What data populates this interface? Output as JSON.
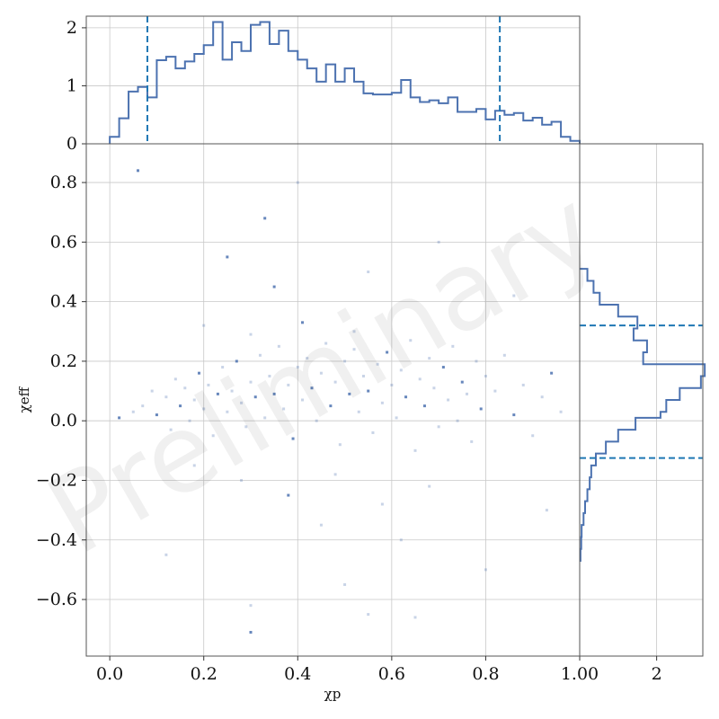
{
  "watermark": "Preliminary",
  "chart_data": [
    {
      "panel": "main",
      "type": "scatter",
      "xlabel": "χp",
      "ylabel": "χeff",
      "xlim": [
        -0.05,
        1.0
      ],
      "ylim": [
        -0.79,
        0.93
      ],
      "xticks": [
        0.0,
        0.2,
        0.4,
        0.6,
        0.8,
        1.0
      ],
      "xtick_labels": [
        "0.0",
        "0.2",
        "0.4",
        "0.6",
        "0.8",
        "1.00"
      ],
      "yticks": [
        -0.6,
        -0.4,
        -0.2,
        0.0,
        0.2,
        0.4,
        0.6,
        0.8
      ],
      "ytick_labels": [
        "−0.6",
        "−0.4",
        "−0.2",
        "0.0",
        "0.2",
        "0.4",
        "0.6",
        "0.8"
      ],
      "grid": true,
      "color": "#4c72b0",
      "points": [
        [
          0.02,
          0.01
        ],
        [
          0.05,
          0.03
        ],
        [
          0.07,
          0.05
        ],
        [
          0.09,
          0.1
        ],
        [
          0.1,
          0.02
        ],
        [
          0.12,
          0.08
        ],
        [
          0.13,
          -0.03
        ],
        [
          0.14,
          0.14
        ],
        [
          0.15,
          0.05
        ],
        [
          0.16,
          0.11
        ],
        [
          0.17,
          0.0
        ],
        [
          0.18,
          0.07
        ],
        [
          0.19,
          0.16
        ],
        [
          0.2,
          0.04
        ],
        [
          0.21,
          0.12
        ],
        [
          0.22,
          -0.05
        ],
        [
          0.23,
          0.09
        ],
        [
          0.24,
          0.18
        ],
        [
          0.25,
          0.03
        ],
        [
          0.26,
          0.1
        ],
        [
          0.27,
          0.2
        ],
        [
          0.28,
          0.06
        ],
        [
          0.29,
          -0.02
        ],
        [
          0.3,
          0.13
        ],
        [
          0.31,
          0.08
        ],
        [
          0.32,
          0.22
        ],
        [
          0.33,
          0.01
        ],
        [
          0.34,
          0.15
        ],
        [
          0.35,
          0.09
        ],
        [
          0.36,
          0.25
        ],
        [
          0.37,
          0.04
        ],
        [
          0.38,
          0.12
        ],
        [
          0.39,
          -0.06
        ],
        [
          0.4,
          0.18
        ],
        [
          0.41,
          0.07
        ],
        [
          0.42,
          0.21
        ],
        [
          0.43,
          0.11
        ],
        [
          0.44,
          0.0
        ],
        [
          0.45,
          0.16
        ],
        [
          0.46,
          0.26
        ],
        [
          0.47,
          0.05
        ],
        [
          0.48,
          0.13
        ],
        [
          0.49,
          -0.08
        ],
        [
          0.5,
          0.2
        ],
        [
          0.51,
          0.09
        ],
        [
          0.52,
          0.24
        ],
        [
          0.53,
          0.03
        ],
        [
          0.54,
          0.15
        ],
        [
          0.55,
          0.1
        ],
        [
          0.56,
          -0.04
        ],
        [
          0.57,
          0.19
        ],
        [
          0.58,
          0.06
        ],
        [
          0.59,
          0.23
        ],
        [
          0.6,
          0.12
        ],
        [
          0.61,
          0.01
        ],
        [
          0.62,
          0.17
        ],
        [
          0.63,
          0.08
        ],
        [
          0.64,
          0.27
        ],
        [
          0.65,
          -0.1
        ],
        [
          0.66,
          0.14
        ],
        [
          0.67,
          0.05
        ],
        [
          0.68,
          0.21
        ],
        [
          0.69,
          0.11
        ],
        [
          0.7,
          -0.02
        ],
        [
          0.71,
          0.18
        ],
        [
          0.72,
          0.07
        ],
        [
          0.73,
          0.25
        ],
        [
          0.74,
          0.0
        ],
        [
          0.75,
          0.13
        ],
        [
          0.76,
          0.09
        ],
        [
          0.77,
          -0.07
        ],
        [
          0.78,
          0.2
        ],
        [
          0.79,
          0.04
        ],
        [
          0.8,
          0.15
        ],
        [
          0.82,
          0.1
        ],
        [
          0.84,
          0.22
        ],
        [
          0.86,
          0.02
        ],
        [
          0.88,
          0.12
        ],
        [
          0.9,
          -0.05
        ],
        [
          0.92,
          0.08
        ],
        [
          0.94,
          0.16
        ],
        [
          0.96,
          0.03
        ],
        [
          0.2,
          0.32
        ],
        [
          0.3,
          0.29
        ],
        [
          0.41,
          0.33
        ],
        [
          0.52,
          0.3
        ],
        [
          0.18,
          -0.15
        ],
        [
          0.28,
          -0.2
        ],
        [
          0.38,
          -0.25
        ],
        [
          0.48,
          -0.18
        ],
        [
          0.58,
          -0.28
        ],
        [
          0.68,
          -0.22
        ],
        [
          0.35,
          0.45
        ],
        [
          0.55,
          0.5
        ],
        [
          0.45,
          -0.35
        ],
        [
          0.62,
          -0.4
        ],
        [
          0.25,
          0.55
        ],
        [
          0.5,
          -0.55
        ],
        [
          0.7,
          0.6
        ],
        [
          0.4,
          0.8
        ],
        [
          0.06,
          0.84
        ],
        [
          0.3,
          -0.62
        ],
        [
          0.55,
          -0.65
        ],
        [
          0.65,
          -0.66
        ],
        [
          0.3,
          -0.71
        ],
        [
          0.86,
          0.42
        ],
        [
          0.93,
          -0.3
        ],
        [
          0.12,
          -0.45
        ],
        [
          0.33,
          0.68
        ],
        [
          0.8,
          -0.5
        ]
      ]
    },
    {
      "panel": "top",
      "type": "histogram",
      "xlabel": "",
      "ylabel": "",
      "bin_edges": [
        0.0,
        0.02,
        0.04,
        0.06,
        0.08,
        0.1,
        0.12,
        0.14,
        0.16,
        0.18,
        0.2,
        0.22,
        0.24,
        0.26,
        0.28,
        0.3,
        0.32,
        0.34,
        0.36,
        0.38,
        0.4,
        0.42,
        0.44,
        0.46,
        0.48,
        0.5,
        0.52,
        0.54,
        0.56,
        0.58,
        0.6,
        0.62,
        0.64,
        0.66,
        0.68,
        0.7,
        0.72,
        0.74,
        0.76,
        0.78,
        0.8,
        0.82,
        0.84,
        0.86,
        0.88,
        0.9,
        0.92,
        0.94,
        0.96,
        0.98,
        1.0
      ],
      "values": [
        0.12,
        0.44,
        0.9,
        0.98,
        0.8,
        1.44,
        1.5,
        1.3,
        1.42,
        1.55,
        1.7,
        2.1,
        1.45,
        1.75,
        1.6,
        2.05,
        2.1,
        1.72,
        1.95,
        1.6,
        1.45,
        1.3,
        1.07,
        1.37,
        1.07,
        1.3,
        1.07,
        0.87,
        0.85,
        0.85,
        0.88,
        1.1,
        0.8,
        0.72,
        0.75,
        0.7,
        0.8,
        0.55,
        0.55,
        0.6,
        0.42,
        0.57,
        0.5,
        0.53,
        0.4,
        0.45,
        0.33,
        0.38,
        0.12,
        0.05
      ],
      "ylim": [
        0,
        2.2
      ],
      "yticks": [
        0,
        1,
        2
      ],
      "ytick_labels": [
        "0",
        "1",
        "2"
      ],
      "quantile_lines_x": [
        0.08,
        0.83
      ],
      "color": "#4c72b0",
      "line_color": "#1f77b4"
    },
    {
      "panel": "right",
      "type": "histogram",
      "orientation": "horizontal",
      "xlabel": "",
      "ylabel": "",
      "bin_edges": [
        -0.47,
        -0.43,
        -0.39,
        -0.35,
        -0.31,
        -0.27,
        -0.23,
        -0.19,
        -0.15,
        -0.11,
        -0.07,
        -0.03,
        0.01,
        0.03,
        0.07,
        0.11,
        0.15,
        0.19,
        0.23,
        0.27,
        0.31,
        0.35,
        0.39,
        0.43,
        0.47,
        0.51
      ],
      "values": [
        0.02,
        0.04,
        0.05,
        0.1,
        0.14,
        0.2,
        0.26,
        0.3,
        0.42,
        0.68,
        1.0,
        1.45,
        2.1,
        2.25,
        2.6,
        3.15,
        3.25,
        1.65,
        1.75,
        1.4,
        1.5,
        1.0,
        0.52,
        0.36,
        0.2
      ],
      "xlim": [
        0,
        3.2
      ],
      "xticks": [
        2
      ],
      "xtick_labels": [
        "2"
      ],
      "quantile_lines_y": [
        -0.125,
        0.32
      ],
      "color": "#4c72b0",
      "line_color": "#1f77b4"
    }
  ]
}
